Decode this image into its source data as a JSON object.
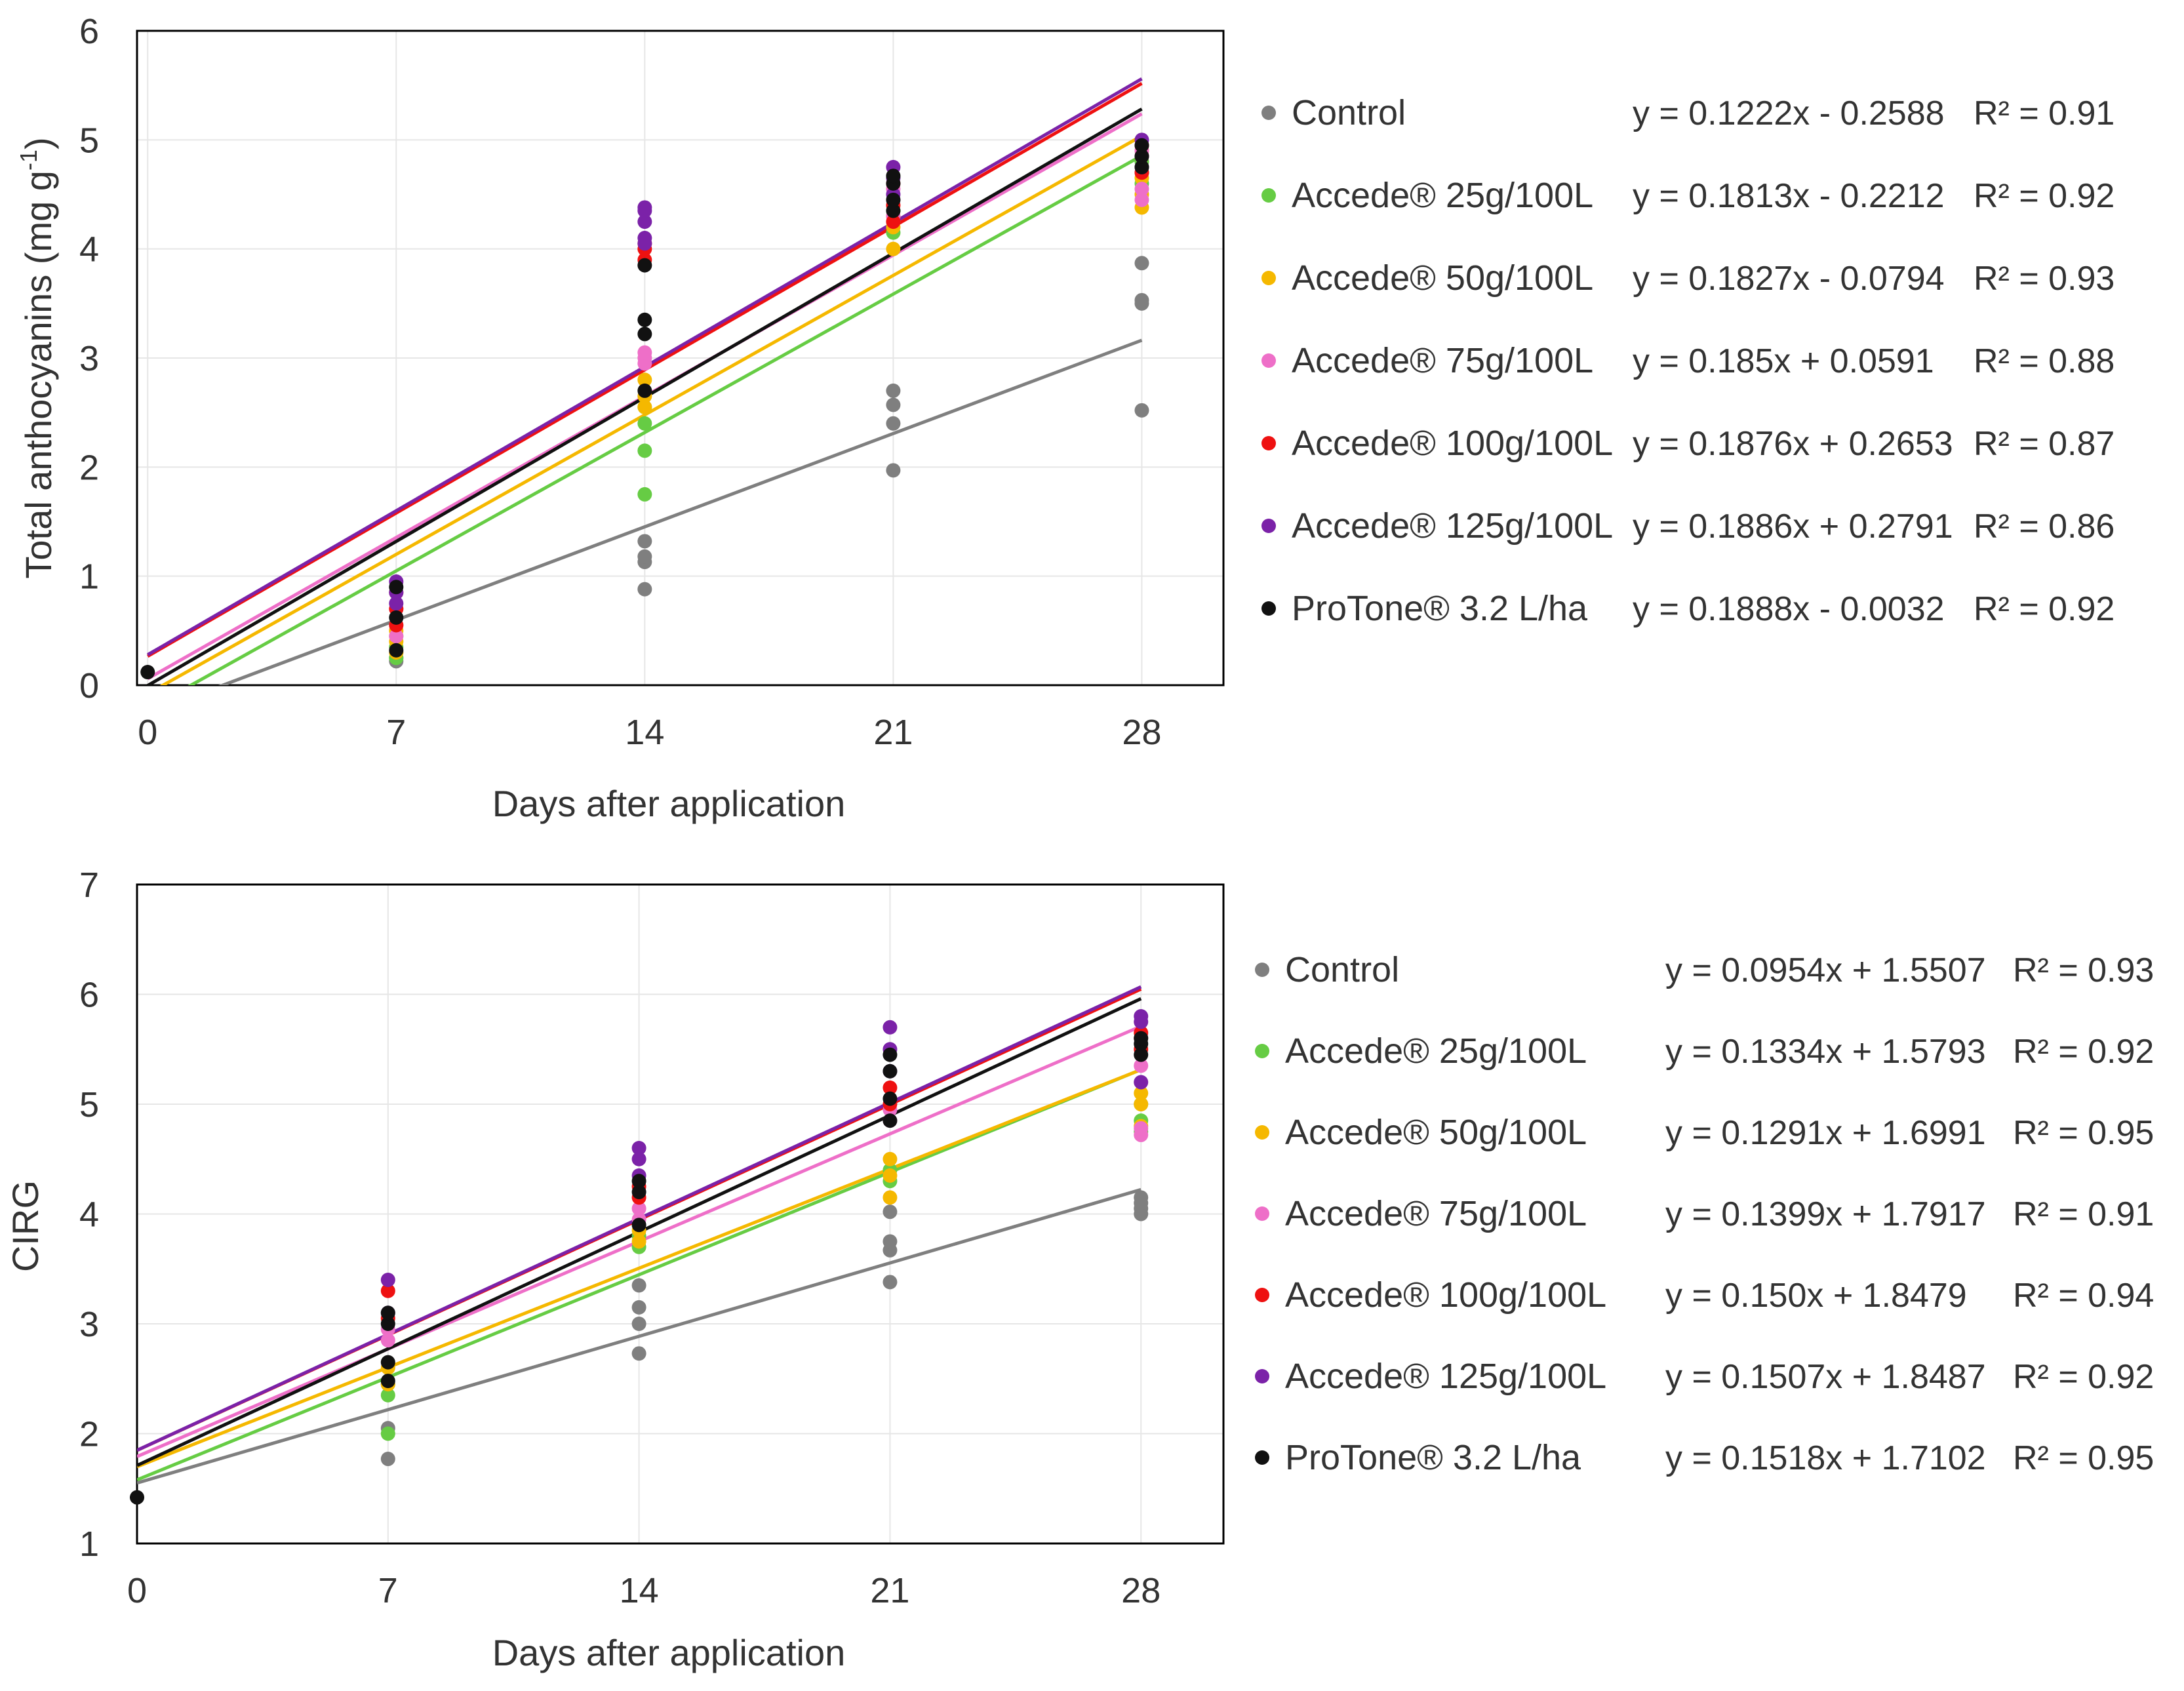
{
  "chart_data": [
    {
      "type": "scatter",
      "title": "",
      "xlabel": "Days after application",
      "ylabel": "Total anthocyanins (mg g",
      "ylabel_superscript": "-1",
      "ylabel_close": ")",
      "xlim": [
        -0.3,
        30.3
      ],
      "ylim": [
        0,
        6
      ],
      "x_ticks": [
        0,
        7,
        14,
        21,
        28
      ],
      "y_ticks": [
        0,
        1,
        2,
        3,
        4,
        5,
        6
      ],
      "grid": true,
      "legend_position": "right",
      "trendline": "linear",
      "series": [
        {
          "name": "Control",
          "color": "#7f7f7f",
          "equation": "y = 0.1222x - 0.2588",
          "r2": "R² = 0.91",
          "slope": 0.1222,
          "intercept": -0.2588,
          "points": [
            [
              7,
              0.22
            ],
            [
              7,
              0.25
            ],
            [
              7,
              0.3
            ],
            [
              14,
              0.88
            ],
            [
              14,
              1.13
            ],
            [
              14,
              1.18
            ],
            [
              14,
              1.32
            ],
            [
              21,
              1.97
            ],
            [
              21,
              2.4
            ],
            [
              21,
              2.57
            ],
            [
              21,
              2.7
            ],
            [
              28,
              2.52
            ],
            [
              28,
              3.5
            ],
            [
              28,
              3.53
            ],
            [
              28,
              3.87
            ]
          ]
        },
        {
          "name": "Accede® 25g/100L",
          "color": "#66cc44",
          "equation": "y = 0.1813x - 0.2212",
          "r2": "R² = 0.92",
          "slope": 0.1813,
          "intercept": -0.2212,
          "points": [
            [
              7,
              0.25
            ],
            [
              7,
              0.35
            ],
            [
              7,
              0.45
            ],
            [
              14,
              1.75
            ],
            [
              14,
              2.15
            ],
            [
              14,
              2.4
            ],
            [
              14,
              2.55
            ],
            [
              21,
              4.15
            ],
            [
              21,
              4.25
            ],
            [
              21,
              4.35
            ],
            [
              28,
              4.6
            ],
            [
              28,
              4.7
            ],
            [
              28,
              4.8
            ]
          ]
        },
        {
          "name": "Accede® 50g/100L",
          "color": "#f5b800",
          "equation": "y = 0.1827x - 0.0794",
          "r2": "R² = 0.93",
          "slope": 0.1827,
          "intercept": -0.0794,
          "points": [
            [
              7,
              0.3
            ],
            [
              7,
              0.4
            ],
            [
              7,
              0.5
            ],
            [
              14,
              2.55
            ],
            [
              14,
              2.65
            ],
            [
              14,
              2.8
            ],
            [
              21,
              4.0
            ],
            [
              21,
              4.2
            ],
            [
              21,
              4.3
            ],
            [
              28,
              4.38
            ],
            [
              28,
              4.5
            ],
            [
              28,
              4.65
            ],
            [
              28,
              4.9
            ]
          ]
        },
        {
          "name": "Accede® 75g/100L",
          "color": "#ee6fc8",
          "equation": "y = 0.185x + 0.0591",
          "r2": "R² = 0.88",
          "slope": 0.185,
          "intercept": 0.0591,
          "points": [
            [
              7,
              0.45
            ],
            [
              7,
              0.55
            ],
            [
              7,
              0.7
            ],
            [
              14,
              2.95
            ],
            [
              14,
              3.0
            ],
            [
              14,
              3.05
            ],
            [
              21,
              4.3
            ],
            [
              21,
              4.45
            ],
            [
              21,
              4.55
            ],
            [
              28,
              4.45
            ],
            [
              28,
              4.55
            ],
            [
              28,
              4.9
            ]
          ]
        },
        {
          "name": "Accede® 100g/100L",
          "color": "#ee1111",
          "equation": "y = 0.1876x + 0.2653",
          "r2": "R² = 0.87",
          "slope": 0.1876,
          "intercept": 0.2653,
          "points": [
            [
              7,
              0.55
            ],
            [
              7,
              0.7
            ],
            [
              7,
              0.85
            ],
            [
              14,
              3.9
            ],
            [
              14,
              4.0
            ],
            [
              14,
              4.05
            ],
            [
              21,
              4.25
            ],
            [
              21,
              4.4
            ],
            [
              21,
              4.6
            ],
            [
              28,
              4.7
            ],
            [
              28,
              4.85
            ],
            [
              28,
              4.95
            ]
          ]
        },
        {
          "name": "Accede® 125g/100L",
          "color": "#7b22a8",
          "equation": "y = 0.1886x + 0.2791",
          "r2": "R² = 0.86",
          "slope": 0.1886,
          "intercept": 0.2791,
          "points": [
            [
              7,
              0.75
            ],
            [
              7,
              0.85
            ],
            [
              7,
              0.95
            ],
            [
              14,
              4.05
            ],
            [
              14,
              4.1
            ],
            [
              14,
              4.25
            ],
            [
              14,
              4.35
            ],
            [
              14,
              4.38
            ],
            [
              21,
              4.5
            ],
            [
              21,
              4.65
            ],
            [
              21,
              4.75
            ],
            [
              28,
              4.75
            ],
            [
              28,
              4.85
            ],
            [
              28,
              5.0
            ]
          ]
        },
        {
          "name": "ProTone® 3.2 L/ha",
          "color": "#111111",
          "equation": "y = 0.1888x - 0.0032",
          "r2": "R² = 0.92",
          "slope": 0.1888,
          "intercept": -0.0032,
          "points": [
            [
              0,
              0.12
            ],
            [
              7,
              0.32
            ],
            [
              7,
              0.62
            ],
            [
              7,
              0.9
            ],
            [
              14,
              2.7
            ],
            [
              14,
              3.22
            ],
            [
              14,
              3.35
            ],
            [
              14,
              3.85
            ],
            [
              21,
              4.35
            ],
            [
              21,
              4.45
            ],
            [
              21,
              4.6
            ],
            [
              21,
              4.67
            ],
            [
              28,
              4.75
            ],
            [
              28,
              4.85
            ],
            [
              28,
              4.95
            ]
          ]
        }
      ]
    },
    {
      "type": "scatter",
      "title": "",
      "xlabel": "Days after application",
      "ylabel": "CIRG",
      "xlim": [
        0,
        30.3
      ],
      "ylim": [
        1,
        7
      ],
      "x_ticks": [
        0,
        7,
        14,
        21,
        28
      ],
      "y_ticks": [
        1,
        2,
        3,
        4,
        5,
        6,
        7
      ],
      "grid": true,
      "legend_position": "right",
      "trendline": "linear",
      "series": [
        {
          "name": "Control",
          "color": "#7f7f7f",
          "equation": "y = 0.0954x + 1.5507",
          "r2": "R² = 0.93",
          "slope": 0.0954,
          "intercept": 1.5507,
          "points": [
            [
              7,
              1.77
            ],
            [
              7,
              2.05
            ],
            [
              14,
              2.73
            ],
            [
              14,
              3.0
            ],
            [
              14,
              3.15
            ],
            [
              14,
              3.35
            ],
            [
              21,
              3.38
            ],
            [
              21,
              3.67
            ],
            [
              21,
              3.75
            ],
            [
              21,
              4.02
            ],
            [
              28,
              4.0
            ],
            [
              28,
              4.05
            ],
            [
              28,
              4.1
            ],
            [
              28,
              4.15
            ]
          ]
        },
        {
          "name": "Accede® 25g/100L",
          "color": "#66cc44",
          "equation": "y = 0.1334x + 1.5793",
          "r2": "R² = 0.92",
          "slope": 0.1334,
          "intercept": 1.5793,
          "points": [
            [
              7,
              2.0
            ],
            [
              7,
              2.35
            ],
            [
              7,
              2.45
            ],
            [
              14,
              3.7
            ],
            [
              14,
              3.8
            ],
            [
              21,
              4.3
            ],
            [
              21,
              4.4
            ],
            [
              28,
              4.75
            ],
            [
              28,
              4.85
            ],
            [
              28,
              5.0
            ]
          ]
        },
        {
          "name": "Accede® 50g/100L",
          "color": "#f5b800",
          "equation": "y = 0.1291x + 1.6991",
          "r2": "R² = 0.95",
          "slope": 0.1291,
          "intercept": 1.6991,
          "points": [
            [
              7,
              2.45
            ],
            [
              7,
              2.6
            ],
            [
              14,
              3.75
            ],
            [
              14,
              3.85
            ],
            [
              21,
              4.15
            ],
            [
              21,
              4.35
            ],
            [
              21,
              4.5
            ],
            [
              28,
              4.8
            ],
            [
              28,
              5.0
            ],
            [
              28,
              5.1
            ]
          ]
        },
        {
          "name": "Accede® 75g/100L",
          "color": "#ee6fc8",
          "equation": "y = 0.1399x + 1.7917",
          "r2": "R² = 0.91",
          "slope": 0.1399,
          "intercept": 1.7917,
          "points": [
            [
              7,
              2.85
            ],
            [
              7,
              2.95
            ],
            [
              14,
              3.95
            ],
            [
              14,
              4.05
            ],
            [
              21,
              4.85
            ],
            [
              21,
              4.95
            ],
            [
              28,
              4.72
            ],
            [
              28,
              4.78
            ],
            [
              28,
              5.35
            ]
          ]
        },
        {
          "name": "Accede® 100g/100L",
          "color": "#ee1111",
          "equation": "y = 0.150x + 1.8479",
          "r2": "R² = 0.94",
          "slope": 0.15,
          "intercept": 1.8479,
          "points": [
            [
              7,
              3.05
            ],
            [
              7,
              3.3
            ],
            [
              14,
              4.15
            ],
            [
              14,
              4.25
            ],
            [
              21,
              5.0
            ],
            [
              21,
              5.15
            ],
            [
              28,
              5.5
            ],
            [
              28,
              5.6
            ],
            [
              28,
              5.65
            ]
          ]
        },
        {
          "name": "Accede® 125g/100L",
          "color": "#7b22a8",
          "equation": "y = 0.1507x + 1.8487",
          "r2": "R² = 0.92",
          "slope": 0.1507,
          "intercept": 1.8487,
          "points": [
            [
              7,
              3.1
            ],
            [
              7,
              3.4
            ],
            [
              14,
              4.35
            ],
            [
              14,
              4.5
            ],
            [
              14,
              4.6
            ],
            [
              21,
              5.3
            ],
            [
              21,
              5.5
            ],
            [
              21,
              5.7
            ],
            [
              28,
              5.2
            ],
            [
              28,
              5.75
            ],
            [
              28,
              5.8
            ]
          ]
        },
        {
          "name": "ProTone® 3.2 L/ha",
          "color": "#111111",
          "equation": "y = 0.1518x + 1.7102",
          "r2": "R² = 0.95",
          "slope": 0.1518,
          "intercept": 1.7102,
          "points": [
            [
              0,
              1.42
            ],
            [
              7,
              2.48
            ],
            [
              7,
              2.65
            ],
            [
              7,
              3.0
            ],
            [
              7,
              3.1
            ],
            [
              14,
              3.9
            ],
            [
              14,
              4.2
            ],
            [
              14,
              4.3
            ],
            [
              21,
              4.85
            ],
            [
              21,
              5.05
            ],
            [
              21,
              5.3
            ],
            [
              21,
              5.45
            ],
            [
              28,
              5.45
            ],
            [
              28,
              5.55
            ],
            [
              28,
              5.6
            ]
          ]
        }
      ]
    }
  ]
}
